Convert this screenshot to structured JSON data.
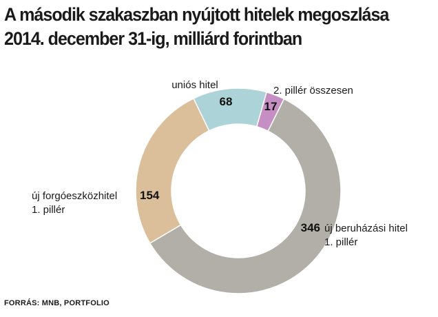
{
  "title_lines": [
    "A második szakaszban nyújtott hitelek megoszlása",
    "2014. december 31-ig, milliárd forintban"
  ],
  "source": "FORRÁS: MNB, PORTFOLIO",
  "chart_data": {
    "type": "pie",
    "style": "donut",
    "title": "A második szakaszban nyújtott hitelek megoszlása 2014. december 31-ig, milliárd forintban",
    "slices": [
      {
        "label_lines": [
          "2. pillér összesen"
        ],
        "value": 17,
        "color": "#c58fc3"
      },
      {
        "label_lines": [
          "új beruházási hitel",
          "1. pillér"
        ],
        "value": 346,
        "color": "#b1afa7"
      },
      {
        "label_lines": [
          "új forgóeszközhitel",
          "1. pillér"
        ],
        "value": 154,
        "color": "#dbbe9a"
      },
      {
        "label_lines": [
          "uniós hitel"
        ],
        "value": 68,
        "color": "#acd3d8"
      }
    ]
  }
}
